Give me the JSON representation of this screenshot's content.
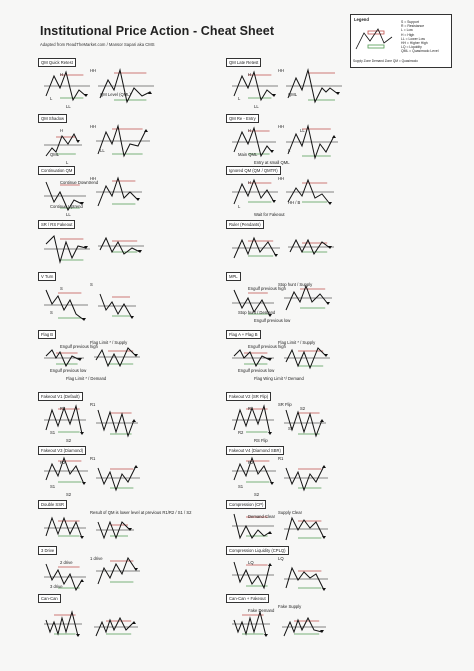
{
  "header": {
    "title": "Institutional Price Action - Cheat Sheet",
    "subtitle": "Adapted from ReadTheMarket.com / Mansor Sapari aka CMS"
  },
  "legend": {
    "title": "Legend",
    "items": [
      "S = Support",
      "R = Resistance",
      "L = Low",
      "H = High",
      "LL = Lower Low",
      "HH = Higher High",
      "LQ = Liquidity",
      "QML = Quasimodo Level"
    ],
    "footer": "Supply Zone  Demand Zone  QM = Quasimodo"
  },
  "colors": {
    "supply": "#c0504d",
    "demand": "#4f9a4f",
    "line": "#111111",
    "level": "#111111"
  },
  "patterns": [
    {
      "label": "QM Quick Retest",
      "annotations": [
        "HH",
        "H",
        "L",
        "LL",
        "QM Level (QML)"
      ]
    },
    {
      "label": "QM Late Retest",
      "annotations": [
        "HH",
        "H",
        "L",
        "LL",
        "QML"
      ]
    },
    {
      "label": "QM Shadow",
      "annotations": [
        "HH",
        "H",
        "QML",
        "L",
        "LL"
      ]
    },
    {
      "label": "QM Re - Entry",
      "annotations": [
        "HH",
        "H",
        "Main QML",
        "Entry at small QML",
        "L",
        "LL"
      ]
    },
    {
      "label": "Continuation QM",
      "annotations": [
        "HH",
        "Continue Downtrend",
        "Continue Uptrend",
        "LL"
      ]
    },
    {
      "label": "Ignored QM (QM / QMTR)",
      "annotations": [
        "HH",
        "H",
        "L",
        "Wait for Fakeout",
        "HH / B"
      ]
    },
    {
      "label": "SR / RS Fakeout",
      "annotations": []
    },
    {
      "label": "Ruler (Pendants)",
      "annotations": []
    },
    {
      "label": "V Turn",
      "annotations": [
        "S",
        "S",
        "S"
      ]
    },
    {
      "label": "MPL",
      "annotations": [
        "Stop hunt / Supply",
        "Engulf previous high",
        "Stop hunt / Demand",
        "Engulf previous low"
      ]
    },
    {
      "label": "Flag B",
      "annotations": [
        "Flag Limit * / Supply",
        "Engulf previous high",
        "Engulf previous low",
        "Flag Limit * / Demand"
      ]
    },
    {
      "label": "Flag A + Flag B",
      "annotations": [
        "Flag Limit * / Supply",
        "Engulf previous high",
        "Engulf previous low",
        "Flag Wing Limit */ Demand"
      ]
    },
    {
      "label": "Fakeout V1 (Default)",
      "annotations": [
        "R1",
        "R2",
        "S1",
        "S2"
      ]
    },
    {
      "label": "Fakeout V2 (SR Flip)",
      "annotations": [
        "SR Flip",
        "R1",
        "R2",
        "RS Flip",
        "S1",
        "S2"
      ]
    },
    {
      "label": "Fakeout V3 (Diamond)",
      "annotations": [
        "R1",
        "R2",
        "S1",
        "S2"
      ]
    },
    {
      "label": "Fakeout V4 (Diamond SBR)",
      "annotations": [
        "R1",
        "R2",
        "S1",
        "S2"
      ]
    },
    {
      "label": "Double SSR",
      "annotations": [
        "Result of QM is lower level at previous R1/R2 / S1 / S2"
      ]
    },
    {
      "label": "Compression (CP)",
      "annotations": [
        "Supply Clear",
        "Demand Clear"
      ]
    },
    {
      "label": "3 Drive",
      "annotations": [
        "1 drive",
        "2 drive",
        "3 drive"
      ]
    },
    {
      "label": "Compression Liquidity (CPLQ)",
      "annotations": [
        "LQ",
        "LQ"
      ]
    },
    {
      "label": "Can-Can",
      "annotations": []
    },
    {
      "label": "Can-Can + Fakeout",
      "annotations": [
        "Fake Supply",
        "Fake Demand"
      ]
    }
  ]
}
